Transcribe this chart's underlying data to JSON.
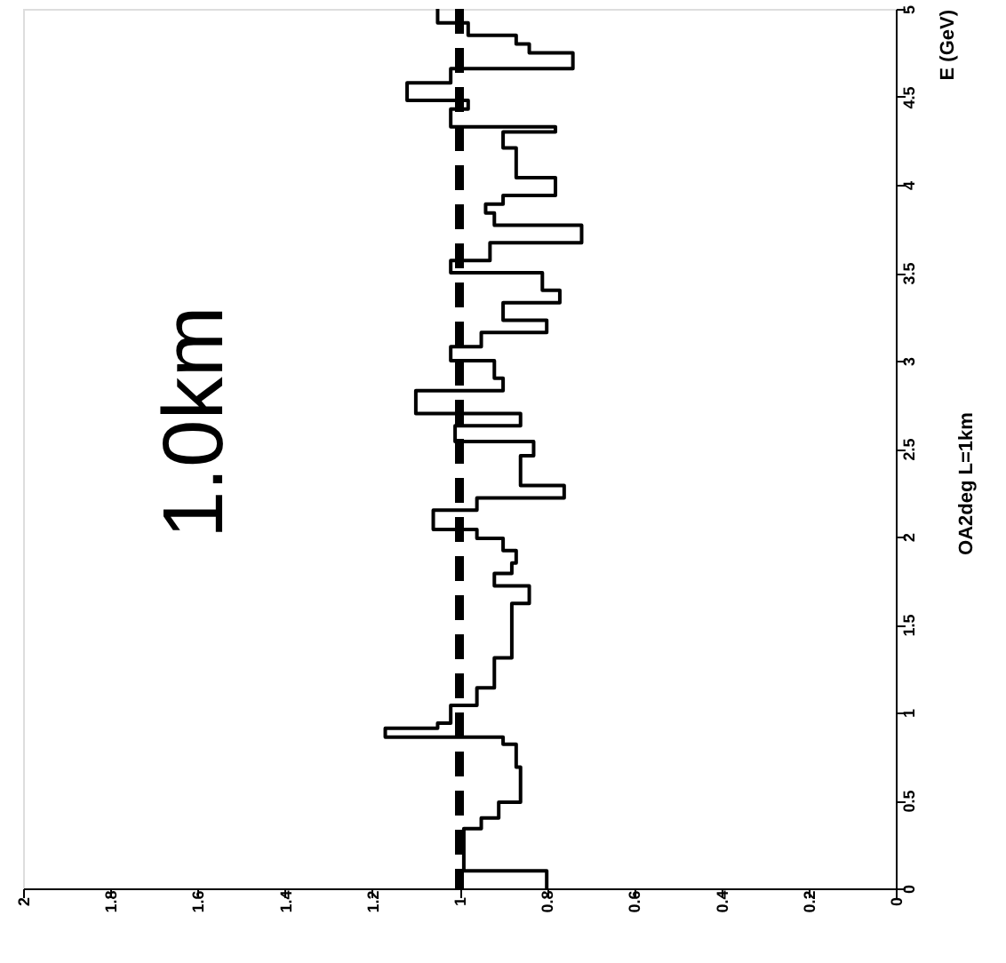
{
  "chart_data": {
    "type": "histogram",
    "orientation": "horizontal",
    "bins": [
      0.0,
      0.1,
      0.34,
      0.4,
      0.49,
      0.69,
      0.82,
      0.86,
      0.91,
      0.94,
      1.04,
      1.14,
      1.31,
      1.62,
      1.72,
      1.79,
      1.85,
      1.92,
      1.99,
      2.04,
      2.15,
      2.22,
      2.29,
      2.46,
      2.54,
      2.63,
      2.7,
      2.83,
      2.9,
      3.0,
      3.08,
      3.16,
      3.23,
      3.33,
      3.4,
      3.5,
      3.57,
      3.67,
      3.77,
      3.84,
      3.89,
      3.94,
      4.04,
      4.21,
      4.3,
      4.33,
      4.43,
      4.48,
      4.58,
      4.66,
      4.75,
      4.8,
      4.85,
      4.92,
      5.0
    ],
    "values": [
      0.8,
      0.99,
      0.95,
      0.91,
      0.86,
      0.87,
      0.9,
      1.17,
      1.05,
      1.02,
      0.96,
      0.92,
      0.88,
      0.84,
      0.92,
      0.88,
      0.87,
      0.9,
      0.96,
      1.06,
      0.96,
      0.76,
      0.86,
      0.83,
      1.01,
      0.86,
      1.1,
      0.9,
      0.92,
      1.02,
      0.95,
      0.8,
      0.9,
      0.77,
      0.81,
      1.02,
      0.93,
      0.72,
      0.92,
      0.94,
      0.9,
      0.78,
      0.87,
      0.9,
      0.78,
      1.02,
      0.98,
      1.12,
      1.02,
      0.74,
      0.84,
      0.87,
      0.98,
      1.05
    ],
    "color": "#000000",
    "xlim": [
      2,
      0
    ],
    "xticks": [
      2,
      1.8,
      1.6,
      1.4,
      1.2,
      1,
      0.8,
      0.6,
      0.4,
      0.2,
      0
    ],
    "ylim": [
      0,
      5
    ],
    "yticks": [
      0,
      0.5,
      1,
      1.5,
      2,
      2.5,
      3,
      3.5,
      4,
      4.5,
      5
    ],
    "ylabel": "E (GeV)",
    "ref_lines": [
      {
        "axis": "x",
        "value": 1,
        "line_style": "dashed"
      }
    ],
    "annotations": [
      "1.0km",
      "OA2deg L=1km"
    ],
    "grid": false
  }
}
